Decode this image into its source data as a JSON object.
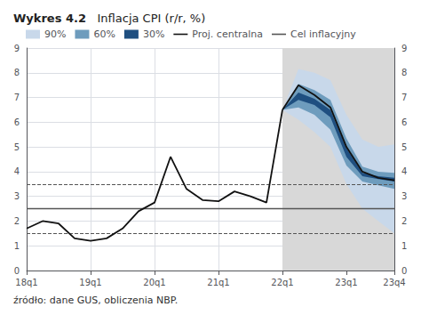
{
  "chart_data": {
    "type": "line",
    "title": "Wykres 4.2",
    "subtitle": "Inflacja CPI (r/r, %)",
    "annotations": [
      "źródło: dane GUS, obliczenia NBP."
    ],
    "xlim": [
      0,
      23
    ],
    "xticks": [
      {
        "value": 0,
        "label": "18q1"
      },
      {
        "value": 4,
        "label": "19q1"
      },
      {
        "value": 8,
        "label": "20q1"
      },
      {
        "value": 12,
        "label": "21q1"
      },
      {
        "value": 16,
        "label": "22q1"
      },
      {
        "value": 20,
        "label": "23q1"
      },
      {
        "value": 23,
        "label": "23q4"
      }
    ],
    "ylim": [
      0,
      9
    ],
    "yticks": [
      0,
      1,
      2,
      3,
      4,
      5,
      6,
      7,
      8,
      9
    ],
    "grid": true,
    "legend": "upper left",
    "series": [
      {
        "type": "span",
        "color": "#d8d8d8",
        "x": [
          16,
          23
        ]
      },
      {
        "name": "90%",
        "type": "band",
        "color": "#c8d8ea",
        "x": [
          16,
          17,
          18,
          19,
          20,
          21,
          22,
          23
        ],
        "lower": [
          6.5,
          6.1,
          5.6,
          5.0,
          3.5,
          2.5,
          2.0,
          1.5
        ],
        "upper": [
          6.5,
          8.15,
          8.0,
          7.7,
          6.3,
          5.3,
          5.0,
          5.1
        ]
      },
      {
        "name": "60%",
        "type": "band",
        "color": "#6e9cbd",
        "x": [
          16,
          17,
          18,
          19,
          20,
          21,
          22,
          23
        ],
        "lower": [
          6.5,
          6.6,
          6.3,
          5.7,
          4.25,
          3.6,
          3.45,
          3.3
        ],
        "upper": [
          6.5,
          7.55,
          7.3,
          6.9,
          5.35,
          4.2,
          4.0,
          3.95
        ]
      },
      {
        "name": "30%",
        "type": "band",
        "color": "#1f4f80",
        "x": [
          16,
          17,
          18,
          19,
          20,
          21,
          22,
          23
        ],
        "lower": [
          6.5,
          6.9,
          6.7,
          6.2,
          4.6,
          3.82,
          3.7,
          3.6
        ],
        "upper": [
          6.5,
          7.2,
          6.95,
          6.5,
          4.95,
          3.95,
          3.82,
          3.75
        ]
      },
      {
        "name": "Proj. centralna",
        "type": "line",
        "color": "#111111",
        "x": [
          16,
          17,
          18,
          19,
          20,
          21,
          22,
          23
        ],
        "values": [
          6.5,
          7.5,
          7.1,
          6.6,
          5.0,
          4.0,
          3.75,
          3.65
        ]
      },
      {
        "type": "line",
        "color": "#111111",
        "x": [
          0,
          1,
          2,
          3,
          4,
          5,
          6,
          7,
          8,
          9,
          10,
          11,
          12,
          13,
          14,
          15,
          16
        ],
        "values": [
          1.7,
          2.0,
          1.9,
          1.3,
          1.2,
          1.3,
          1.7,
          2.4,
          2.75,
          4.6,
          3.3,
          2.85,
          2.8,
          3.2,
          3.0,
          2.75,
          6.5
        ]
      },
      {
        "name": "Cel inflacyjny",
        "type": "hline",
        "color": "#555555",
        "line_style": "solid",
        "values": [
          2.5
        ]
      },
      {
        "type": "hline",
        "color": "#555555",
        "line_style": "dashed",
        "values": [
          3.5
        ]
      },
      {
        "type": "hline",
        "color": "#555555",
        "line_style": "dashed",
        "values": [
          1.5
        ]
      }
    ]
  }
}
